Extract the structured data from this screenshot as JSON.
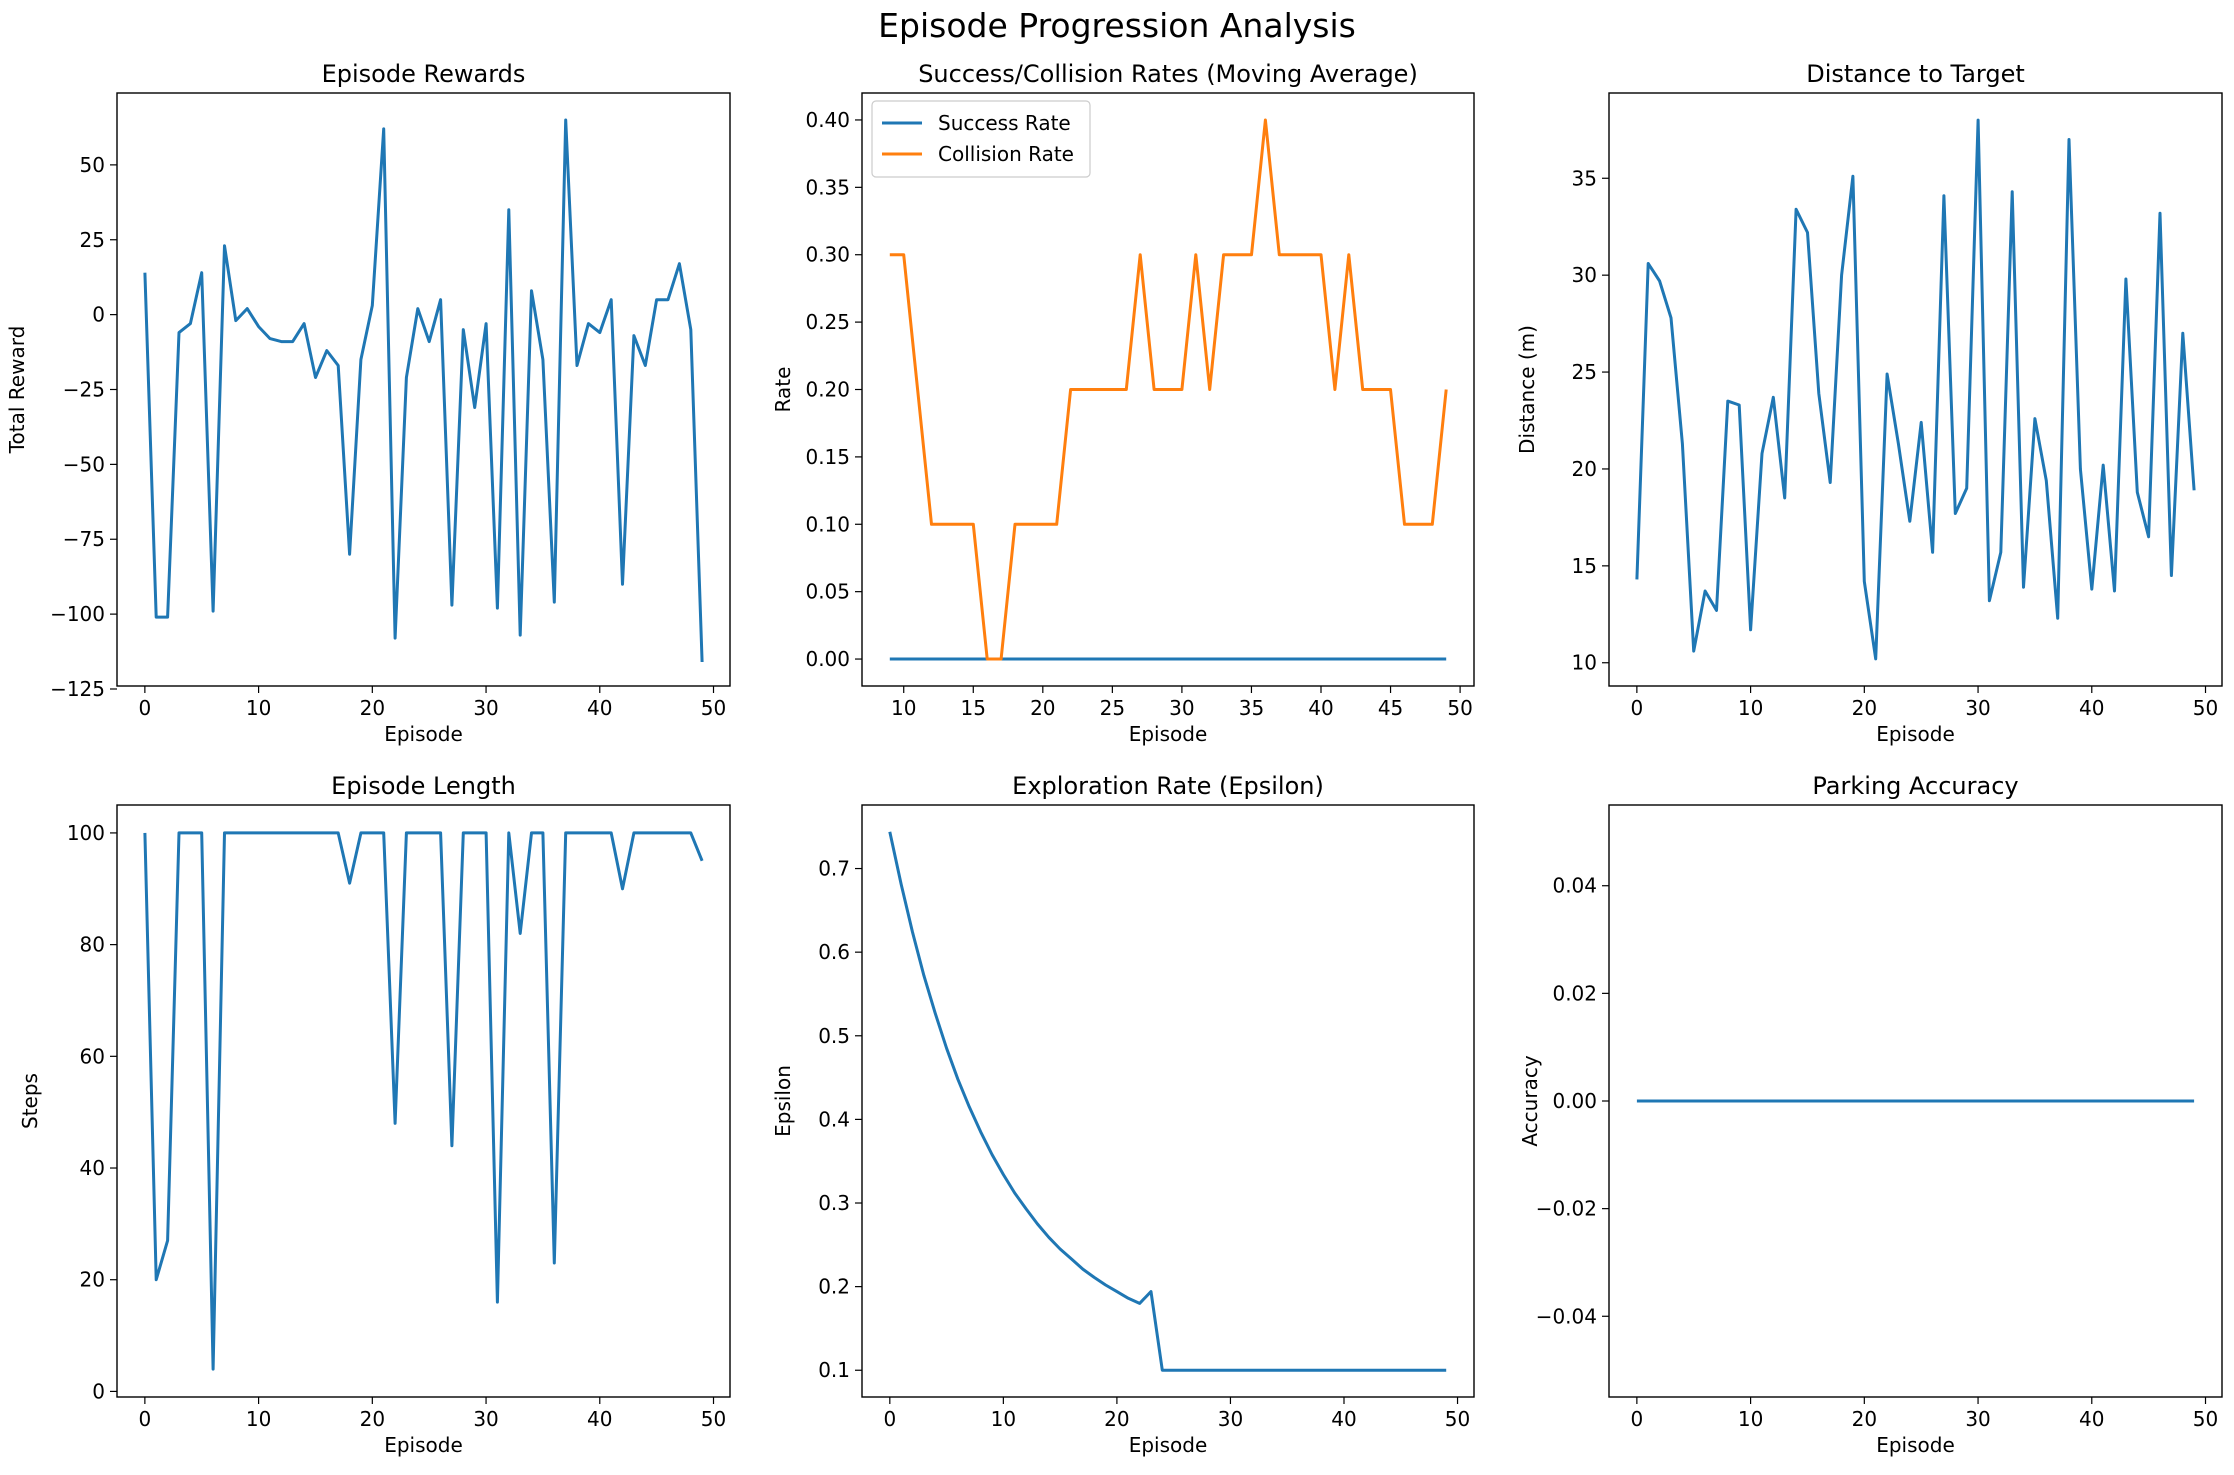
{
  "figure_title": "Episode Progression Analysis",
  "colors": {
    "blue": "#1f77b4",
    "orange": "#ff7f0e"
  },
  "chart_data": [
    {
      "type": "line",
      "title": "Episode Rewards",
      "xlabel": "Episode",
      "ylabel": "Total Reward",
      "xlim": [
        -2.45,
        51.45
      ],
      "ylim": [
        -124,
        74
      ],
      "xticks": [
        0,
        10,
        20,
        30,
        40,
        50
      ],
      "yticks": [
        -125,
        -100,
        -75,
        -50,
        -25,
        0,
        25,
        50
      ],
      "ytick_labels": [
        "−125",
        "−100",
        "−75",
        "−50",
        "−25",
        "0",
        "25",
        "50"
      ],
      "grid": false,
      "series": [
        {
          "color": "#1f77b4",
          "x": [
            0,
            1,
            2,
            3,
            4,
            5,
            6,
            7,
            8,
            9,
            10,
            11,
            12,
            13,
            14,
            15,
            16,
            17,
            18,
            19,
            20,
            21,
            22,
            23,
            24,
            25,
            26,
            27,
            28,
            29,
            30,
            31,
            32,
            33,
            34,
            35,
            36,
            37,
            38,
            39,
            40,
            41,
            42,
            43,
            44,
            45,
            46,
            47,
            48,
            49
          ],
          "y": [
            14,
            -101,
            -101,
            -6,
            -3,
            14,
            -99,
            23,
            -2,
            2,
            -4,
            -8,
            -9,
            -9,
            -3,
            -21,
            -12,
            -17,
            -80,
            -15,
            3,
            62,
            -108,
            -21,
            2,
            -9,
            5,
            -97,
            -5,
            -31,
            -3,
            -98,
            35,
            -107,
            8,
            -15,
            -96,
            65,
            -17,
            -3,
            -6,
            5,
            -90,
            -7,
            -17,
            5,
            5,
            17,
            -5,
            -116
          ]
        }
      ]
    },
    {
      "type": "line",
      "title": "Success/Collision Rates (Moving Average)",
      "xlabel": "Episode",
      "ylabel": "Rate",
      "xlim": [
        7,
        51
      ],
      "ylim": [
        -0.02,
        0.42
      ],
      "xticks": [
        10,
        15,
        20,
        25,
        30,
        35,
        40,
        45,
        50
      ],
      "yticks": [
        0.0,
        0.05,
        0.1,
        0.15,
        0.2,
        0.25,
        0.3,
        0.35,
        0.4
      ],
      "ytick_labels": [
        "0.00",
        "0.05",
        "0.10",
        "0.15",
        "0.20",
        "0.25",
        "0.30",
        "0.35",
        "0.40"
      ],
      "grid": false,
      "legend": "top-left",
      "series": [
        {
          "name": "Success Rate",
          "color": "#1f77b4",
          "x": [
            9,
            10,
            11,
            12,
            13,
            14,
            15,
            16,
            17,
            18,
            19,
            20,
            21,
            22,
            23,
            24,
            25,
            26,
            27,
            28,
            29,
            30,
            31,
            32,
            33,
            34,
            35,
            36,
            37,
            38,
            39,
            40,
            41,
            42,
            43,
            44,
            45,
            46,
            47,
            48,
            49
          ],
          "y": [
            0,
            0,
            0,
            0,
            0,
            0,
            0,
            0,
            0,
            0,
            0,
            0,
            0,
            0,
            0,
            0,
            0,
            0,
            0,
            0,
            0,
            0,
            0,
            0,
            0,
            0,
            0,
            0,
            0,
            0,
            0,
            0,
            0,
            0,
            0,
            0,
            0,
            0,
            0,
            0,
            0
          ]
        },
        {
          "name": "Collision Rate",
          "color": "#ff7f0e",
          "x": [
            9,
            10,
            11,
            12,
            13,
            14,
            15,
            16,
            17,
            18,
            19,
            20,
            21,
            22,
            23,
            24,
            25,
            26,
            27,
            28,
            29,
            30,
            31,
            32,
            33,
            34,
            35,
            36,
            37,
            38,
            39,
            40,
            41,
            42,
            43,
            44,
            45,
            46,
            47,
            48,
            49
          ],
          "y": [
            0.3,
            0.3,
            0.2,
            0.1,
            0.1,
            0.1,
            0.1,
            0.0,
            0.0,
            0.1,
            0.1,
            0.1,
            0.1,
            0.2,
            0.2,
            0.2,
            0.2,
            0.2,
            0.3,
            0.2,
            0.2,
            0.2,
            0.3,
            0.2,
            0.3,
            0.3,
            0.3,
            0.4,
            0.3,
            0.3,
            0.3,
            0.3,
            0.2,
            0.3,
            0.2,
            0.2,
            0.2,
            0.1,
            0.1,
            0.1,
            0.2
          ]
        }
      ]
    },
    {
      "type": "line",
      "title": "Distance to Target",
      "xlabel": "Episode",
      "ylabel": "Distance (m)",
      "xlim": [
        -2.45,
        51.45
      ],
      "ylim": [
        8.8,
        39.4
      ],
      "xticks": [
        0,
        10,
        20,
        30,
        40,
        50
      ],
      "yticks": [
        10,
        15,
        20,
        25,
        30,
        35
      ],
      "ytick_labels": [
        "10",
        "15",
        "20",
        "25",
        "30",
        "35"
      ],
      "grid": false,
      "series": [
        {
          "color": "#1f77b4",
          "x": [
            0,
            1,
            2,
            3,
            4,
            5,
            6,
            7,
            8,
            9,
            10,
            11,
            12,
            13,
            14,
            15,
            16,
            17,
            18,
            19,
            20,
            21,
            22,
            23,
            24,
            25,
            26,
            27,
            28,
            29,
            30,
            31,
            32,
            33,
            34,
            35,
            36,
            37,
            38,
            39,
            40,
            41,
            42,
            43,
            44,
            45,
            46,
            47,
            48,
            49
          ],
          "y": [
            14.3,
            30.6,
            29.7,
            27.8,
            21.3,
            10.6,
            13.7,
            12.7,
            23.5,
            23.3,
            11.7,
            20.8,
            23.7,
            18.5,
            33.4,
            32.2,
            23.9,
            19.3,
            30.0,
            35.1,
            14.2,
            10.2,
            24.9,
            21.3,
            17.3,
            22.4,
            15.7,
            34.1,
            17.7,
            19.0,
            38.0,
            13.2,
            15.7,
            34.3,
            13.9,
            22.6,
            19.4,
            12.3,
            37.0,
            20.0,
            13.8,
            20.2,
            13.7,
            29.8,
            18.8,
            16.5,
            33.2,
            14.5,
            27.0,
            18.9
          ]
        }
      ]
    },
    {
      "type": "line",
      "title": "Episode Length",
      "xlabel": "Episode",
      "ylabel": "Steps",
      "xlim": [
        -2.45,
        51.45
      ],
      "ylim": [
        -1,
        105
      ],
      "xticks": [
        0,
        10,
        20,
        30,
        40,
        50
      ],
      "yticks": [
        0,
        20,
        40,
        60,
        80,
        100
      ],
      "ytick_labels": [
        "0",
        "20",
        "40",
        "60",
        "80",
        "100"
      ],
      "grid": false,
      "series": [
        {
          "color": "#1f77b4",
          "x": [
            0,
            1,
            2,
            3,
            4,
            5,
            6,
            7,
            8,
            9,
            10,
            11,
            12,
            13,
            14,
            15,
            16,
            17,
            18,
            19,
            20,
            21,
            22,
            23,
            24,
            25,
            26,
            27,
            28,
            29,
            30,
            31,
            32,
            33,
            34,
            35,
            36,
            37,
            38,
            39,
            40,
            41,
            42,
            43,
            44,
            45,
            46,
            47,
            48,
            49
          ],
          "y": [
            100,
            20,
            27,
            100,
            100,
            100,
            4,
            100,
            100,
            100,
            100,
            100,
            100,
            100,
            100,
            100,
            100,
            100,
            91,
            100,
            100,
            100,
            48,
            100,
            100,
            100,
            100,
            44,
            100,
            100,
            100,
            16,
            100,
            82,
            100,
            100,
            23,
            100,
            100,
            100,
            100,
            100,
            90,
            100,
            100,
            100,
            100,
            100,
            100,
            95
          ]
        }
      ]
    },
    {
      "type": "line",
      "title": "Exploration Rate (Epsilon)",
      "xlabel": "Episode",
      "ylabel": "Epsilon",
      "xlim": [
        -2.45,
        51.45
      ],
      "ylim": [
        0.068,
        0.776
      ],
      "xticks": [
        0,
        10,
        20,
        30,
        40,
        50
      ],
      "yticks": [
        0.1,
        0.2,
        0.3,
        0.4,
        0.5,
        0.6,
        0.7
      ],
      "ytick_labels": [
        "0.1",
        "0.2",
        "0.3",
        "0.4",
        "0.5",
        "0.6",
        "0.7"
      ],
      "grid": false,
      "series": [
        {
          "color": "#1f77b4",
          "x": [
            0,
            1,
            2,
            3,
            4,
            5,
            6,
            7,
            8,
            9,
            10,
            11,
            12,
            13,
            14,
            15,
            16,
            17,
            18,
            19,
            20,
            21,
            22,
            23,
            24,
            25,
            26,
            27,
            28,
            29,
            30,
            31,
            32,
            33,
            34,
            35,
            36,
            37,
            38,
            39,
            40,
            41,
            42,
            43,
            44,
            45,
            46,
            47,
            48,
            49
          ],
          "y": [
            0.744,
            0.681,
            0.624,
            0.572,
            0.527,
            0.485,
            0.448,
            0.415,
            0.385,
            0.358,
            0.334,
            0.312,
            0.293,
            0.275,
            0.259,
            0.245,
            0.233,
            0.221,
            0.211,
            0.202,
            0.194,
            0.186,
            0.18,
            0.194,
            0.1,
            0.1,
            0.1,
            0.1,
            0.1,
            0.1,
            0.1,
            0.1,
            0.1,
            0.1,
            0.1,
            0.1,
            0.1,
            0.1,
            0.1,
            0.1,
            0.1,
            0.1,
            0.1,
            0.1,
            0.1,
            0.1,
            0.1,
            0.1,
            0.1,
            0.1
          ]
        }
      ]
    },
    {
      "type": "line",
      "title": "Parking Accuracy",
      "xlabel": "Episode",
      "ylabel": "Accuracy",
      "xlim": [
        -2.45,
        51.45
      ],
      "ylim": [
        -0.055,
        0.055
      ],
      "xticks": [
        0,
        10,
        20,
        30,
        40,
        50
      ],
      "yticks": [
        -0.04,
        -0.02,
        0.0,
        0.02,
        0.04
      ],
      "ytick_labels": [
        "−0.04",
        "−0.02",
        "0.00",
        "0.02",
        "0.04"
      ],
      "grid": false,
      "series": [
        {
          "color": "#1f77b4",
          "x": [
            0,
            1,
            2,
            3,
            4,
            5,
            6,
            7,
            8,
            9,
            10,
            11,
            12,
            13,
            14,
            15,
            16,
            17,
            18,
            19,
            20,
            21,
            22,
            23,
            24,
            25,
            26,
            27,
            28,
            29,
            30,
            31,
            32,
            33,
            34,
            35,
            36,
            37,
            38,
            39,
            40,
            41,
            42,
            43,
            44,
            45,
            46,
            47,
            48,
            49
          ],
          "y": [
            0,
            0,
            0,
            0,
            0,
            0,
            0,
            0,
            0,
            0,
            0,
            0,
            0,
            0,
            0,
            0,
            0,
            0,
            0,
            0,
            0,
            0,
            0,
            0,
            0,
            0,
            0,
            0,
            0,
            0,
            0,
            0,
            0,
            0,
            0,
            0,
            0,
            0,
            0,
            0,
            0,
            0,
            0,
            0,
            0,
            0,
            0,
            0,
            0,
            0
          ]
        }
      ]
    }
  ]
}
